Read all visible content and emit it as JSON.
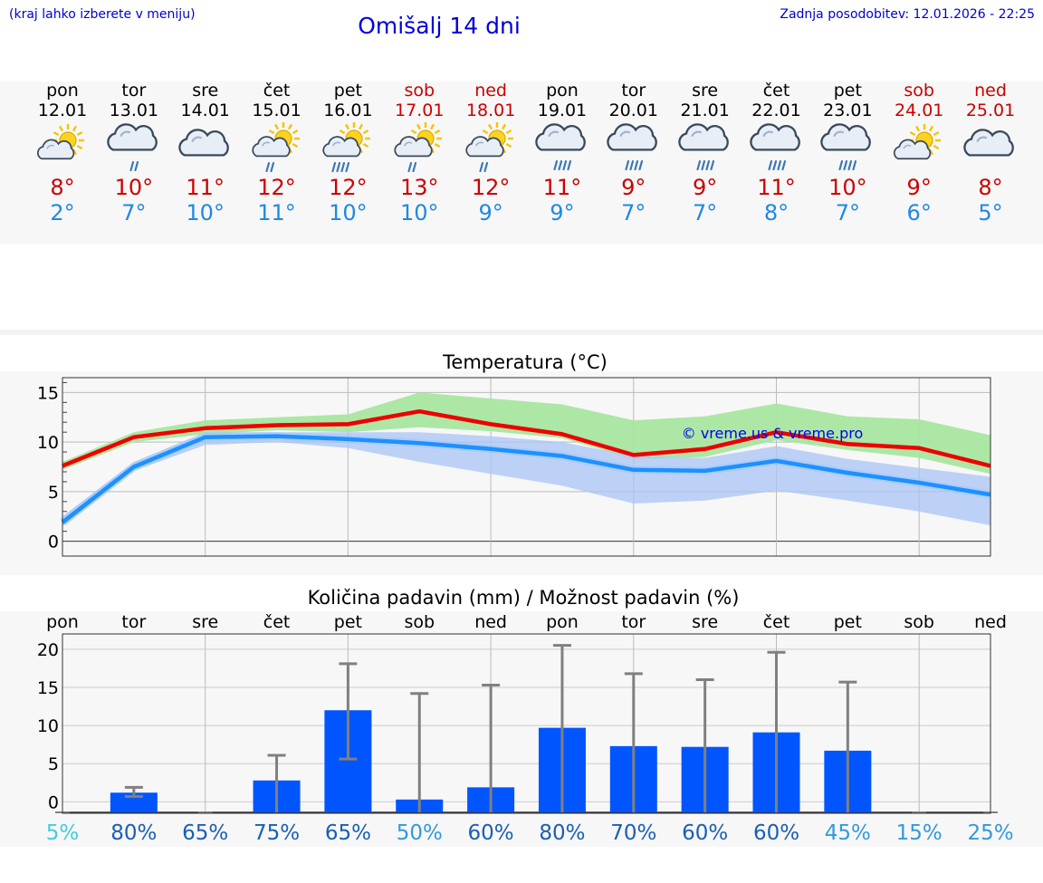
{
  "header": {
    "hint": "(kraj lahko izberete v meniju)",
    "title": "Omišalj 14 dni",
    "updated": "Zadnja posodobitev: 12.01.2026 - 22:25"
  },
  "days": [
    {
      "name": "pon",
      "date": "12.01",
      "weekend": false,
      "icon": "sun-cloud-icon",
      "max": "8°",
      "min": "2°"
    },
    {
      "name": "tor",
      "date": "13.01",
      "weekend": false,
      "icon": "rain-cloud-icon",
      "max": "10°",
      "min": "7°"
    },
    {
      "name": "sre",
      "date": "14.01",
      "weekend": false,
      "icon": "cloud-icon",
      "max": "11°",
      "min": "10°"
    },
    {
      "name": "čet",
      "date": "15.01",
      "weekend": false,
      "icon": "sun-rain-icon",
      "max": "12°",
      "min": "11°"
    },
    {
      "name": "pet",
      "date": "16.01",
      "weekend": false,
      "icon": "sun-heavy-rain-icon",
      "max": "12°",
      "min": "10°"
    },
    {
      "name": "sob",
      "date": "17.01",
      "weekend": true,
      "icon": "sun-rain-icon",
      "max": "13°",
      "min": "10°"
    },
    {
      "name": "ned",
      "date": "18.01",
      "weekend": true,
      "icon": "sun-rain-icon",
      "max": "12°",
      "min": "9°"
    },
    {
      "name": "pon",
      "date": "19.01",
      "weekend": false,
      "icon": "heavy-rain-cloud-icon",
      "max": "11°",
      "min": "9°"
    },
    {
      "name": "tor",
      "date": "20.01",
      "weekend": false,
      "icon": "heavy-rain-cloud-icon",
      "max": "9°",
      "min": "7°"
    },
    {
      "name": "sre",
      "date": "21.01",
      "weekend": false,
      "icon": "heavy-rain-cloud-icon",
      "max": "9°",
      "min": "7°"
    },
    {
      "name": "čet",
      "date": "22.01",
      "weekend": false,
      "icon": "heavy-rain-cloud-icon",
      "max": "11°",
      "min": "8°"
    },
    {
      "name": "pet",
      "date": "23.01",
      "weekend": false,
      "icon": "heavy-rain-cloud-icon",
      "max": "10°",
      "min": "7°"
    },
    {
      "name": "sob",
      "date": "24.01",
      "weekend": true,
      "icon": "sun-cloud-icon",
      "max": "9°",
      "min": "6°"
    },
    {
      "name": "ned",
      "date": "25.01",
      "weekend": true,
      "icon": "cloud-icon",
      "max": "8°",
      "min": "5°"
    }
  ],
  "colors": {
    "max_line": "#ee0000",
    "min_line": "#1e90ff",
    "max_band": "#a8e6a0",
    "min_band": "#a9c4f5",
    "bar": "#0055ff",
    "whisker": "#808080",
    "grid": "#bbbbbb"
  },
  "chart_data": [
    {
      "type": "line",
      "title": "Temperatura (°C)",
      "watermark": "© vreme.us & vreme.pro",
      "x": [
        0,
        1,
        2,
        3,
        4,
        5,
        6,
        7,
        8,
        9,
        10,
        11,
        12,
        13
      ],
      "ylim": [
        -1.5,
        16.5
      ],
      "yticks": [
        0,
        5,
        10,
        15
      ],
      "series": [
        {
          "name": "max",
          "values": [
            7.6,
            10.5,
            11.4,
            11.7,
            11.8,
            13.1,
            11.8,
            10.8,
            8.7,
            9.3,
            11.0,
            9.8,
            9.4,
            7.6
          ],
          "band_low": [
            7.2,
            10.0,
            10.8,
            11.2,
            11.0,
            11.5,
            11.1,
            10.4,
            8.3,
            8.5,
            10.2,
            9.2,
            8.4,
            6.8
          ],
          "band_high": [
            8.0,
            11.0,
            12.2,
            12.5,
            12.8,
            15.0,
            14.4,
            13.8,
            12.2,
            12.6,
            13.9,
            12.6,
            12.3,
            10.7
          ]
        },
        {
          "name": "min",
          "values": [
            1.9,
            7.5,
            10.5,
            10.6,
            10.3,
            9.9,
            9.3,
            8.6,
            7.2,
            7.1,
            8.1,
            6.9,
            5.9,
            4.7
          ],
          "band_low": [
            1.5,
            7.1,
            9.7,
            10.0,
            9.4,
            8.0,
            6.8,
            5.6,
            3.8,
            4.1,
            5.1,
            4.1,
            3.0,
            1.6
          ],
          "band_high": [
            2.5,
            8.0,
            11.0,
            11.0,
            11.0,
            11.0,
            10.6,
            10.0,
            8.6,
            8.4,
            9.6,
            8.3,
            7.4,
            6.5
          ]
        }
      ]
    },
    {
      "type": "bar",
      "title": "Količina padavin (mm) / Možnost padavin (%)",
      "categories": [
        "pon",
        "tor",
        "sre",
        "čet",
        "pet",
        "sob",
        "ned",
        "pon",
        "tor",
        "sre",
        "čet",
        "pet",
        "sob",
        "ned"
      ],
      "values": [
        0,
        1.2,
        0,
        2.8,
        12.0,
        0.3,
        1.9,
        9.7,
        7.3,
        7.2,
        9.1,
        6.7,
        0,
        0
      ],
      "err_low": [
        0,
        0.7,
        0,
        0,
        5.6,
        0,
        0,
        0,
        0,
        0,
        0,
        0,
        0,
        0
      ],
      "err_high": [
        0,
        1.9,
        0,
        6.1,
        18.1,
        14.2,
        15.3,
        20.5,
        16.8,
        16.0,
        19.6,
        15.7,
        0,
        0
      ],
      "ylim": [
        -1.5,
        22
      ],
      "yticks": [
        0,
        5,
        10,
        15,
        20
      ],
      "probabilities": [
        "5%",
        "80%",
        "65%",
        "75%",
        "65%",
        "50%",
        "60%",
        "80%",
        "70%",
        "60%",
        "60%",
        "45%",
        "15%",
        "25%"
      ],
      "prob_colors": [
        "#44ccdd",
        "#1a5fb4",
        "#1a5fb4",
        "#1a5fb4",
        "#1a5fb4",
        "#3399dd",
        "#1a5fb4",
        "#1a5fb4",
        "#1a5fb4",
        "#1a5fb4",
        "#1a5fb4",
        "#3399dd",
        "#3399dd",
        "#3399dd"
      ]
    }
  ]
}
